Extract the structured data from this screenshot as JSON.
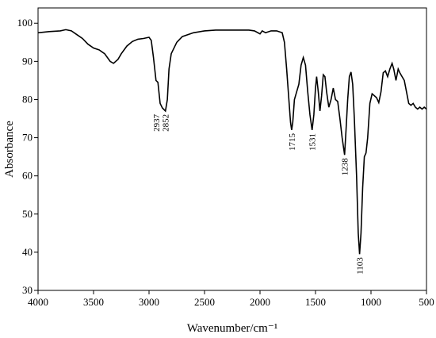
{
  "chart_data": {
    "type": "line",
    "xlabel": "Wavenumber/cm⁻¹",
    "ylabel": "Absorbance",
    "x": [
      4000,
      3900,
      3800,
      3750,
      3700,
      3650,
      3600,
      3550,
      3500,
      3450,
      3400,
      3350,
      3320,
      3280,
      3250,
      3200,
      3150,
      3100,
      3050,
      3000,
      2980,
      2960,
      2937,
      2920,
      2900,
      2880,
      2852,
      2835,
      2820,
      2800,
      2750,
      2700,
      2600,
      2500,
      2400,
      2300,
      2200,
      2100,
      2050,
      2000,
      1980,
      1950,
      1900,
      1850,
      1800,
      1780,
      1760,
      1740,
      1725,
      1715,
      1705,
      1690,
      1670,
      1650,
      1630,
      1610,
      1590,
      1570,
      1550,
      1531,
      1515,
      1500,
      1490,
      1475,
      1460,
      1445,
      1430,
      1415,
      1400,
      1380,
      1360,
      1340,
      1320,
      1300,
      1280,
      1260,
      1238,
      1225,
      1210,
      1195,
      1180,
      1165,
      1150,
      1130,
      1115,
      1103,
      1090,
      1075,
      1060,
      1045,
      1030,
      1010,
      990,
      970,
      950,
      930,
      910,
      890,
      870,
      850,
      830,
      810,
      795,
      775,
      755,
      740,
      720,
      700,
      680,
      660,
      640,
      620,
      600,
      580,
      560,
      540,
      520,
      500
    ],
    "series": [
      {
        "color": "#000000",
        "values": [
          97.5,
          97.8,
          98,
          98.3,
          98,
          97,
          96,
          94.5,
          93.5,
          93,
          92,
          90,
          89.5,
          90.5,
          92,
          94,
          95.2,
          95.8,
          96,
          96.3,
          95.5,
          91,
          85,
          84.5,
          79,
          77.8,
          77,
          80,
          88,
          92,
          95,
          96.5,
          97.5,
          98,
          98.2,
          98.2,
          98.2,
          98.2,
          98,
          97.2,
          98,
          97.5,
          98,
          98,
          97.5,
          95,
          88,
          80,
          74,
          72,
          74,
          80,
          82,
          84,
          89,
          91,
          89,
          82,
          76,
          72,
          76,
          83,
          86,
          82,
          77,
          81,
          86.5,
          86,
          82,
          78,
          80,
          83,
          80,
          79.5,
          75,
          70,
          65.5,
          72,
          80,
          86,
          87.2,
          84,
          75,
          60,
          45,
          39.5,
          45,
          57,
          65,
          66,
          70,
          79,
          81.5,
          81,
          80.5,
          79.2,
          82,
          87,
          87.5,
          86,
          88,
          89.5,
          88,
          85,
          88,
          87,
          86,
          85,
          82,
          79,
          78.5,
          79,
          78,
          77.5,
          78,
          77.5,
          78,
          77.5
        ]
      }
    ],
    "annotations": [
      {
        "label": "2937",
        "x": 2937
      },
      {
        "label": "2852",
        "x": 2852
      },
      {
        "label": "1715",
        "x": 1715
      },
      {
        "label": "1531",
        "x": 1531
      },
      {
        "label": "1238",
        "x": 1238
      },
      {
        "label": "1103",
        "x": 1103
      }
    ],
    "xlim": [
      4000,
      500
    ],
    "xticks": [
      4000,
      3500,
      3000,
      2500,
      2000,
      1500,
      1000,
      500
    ],
    "ylim": [
      30,
      104
    ],
    "yticks": [
      30,
      40,
      50,
      60,
      70,
      80,
      90,
      100
    ]
  }
}
